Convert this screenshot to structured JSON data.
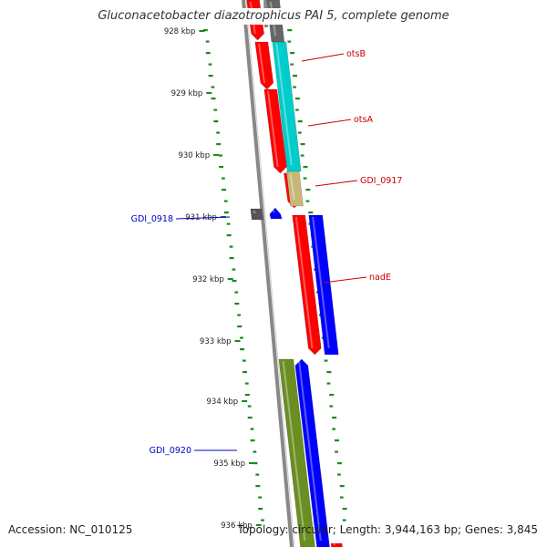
{
  "map": {
    "title": "Gluconacetobacter diazotrophicus PAI 5, complete genome",
    "accession": "Accession: NC_010125",
    "topology": "Topology: circular; Length: 3,944,163 bp; Genes: 3,845",
    "kbp_labels": [
      "928 kbp",
      "929 kbp",
      "930 kbp",
      "931 kbp",
      "932 kbp",
      "933 kbp",
      "934 kbp",
      "935 kbp",
      "936 kbp"
    ],
    "gene_labels": [
      "otsB",
      "otsA",
      "GDI_0917",
      "nadE",
      "GDI_0918",
      "GDI_0920"
    ],
    "colors": {
      "forward_label": "#cc0000",
      "reverse_label": "#0000cc",
      "cds_red": "#ff0000",
      "cds_cyan": "#00cccc",
      "cds_tan": "#c8b878",
      "cds_blue": "#0000ff",
      "cds_olive": "#6b8e23",
      "cds_gray": "#666666",
      "gc_dots": "#1a8a1a",
      "backbone": "#888888"
    }
  }
}
